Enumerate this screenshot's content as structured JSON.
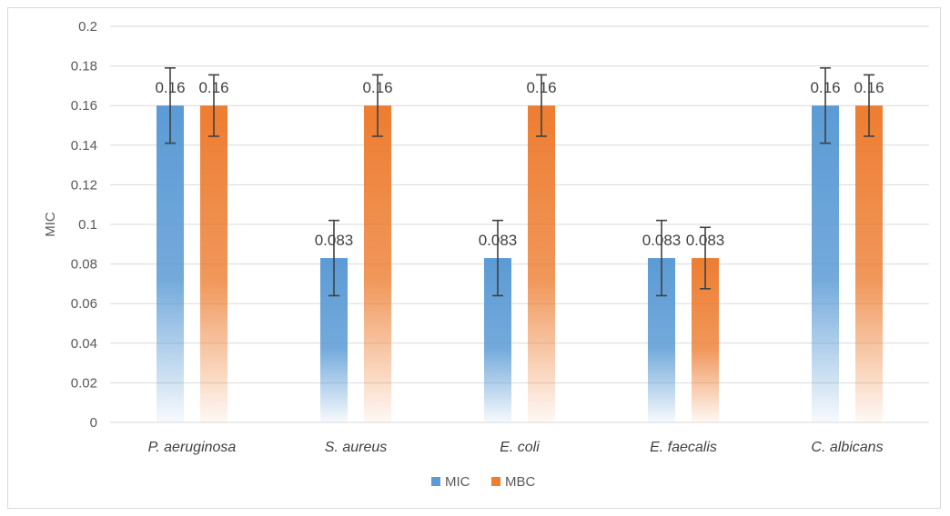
{
  "chart_data": {
    "type": "bar",
    "title": "",
    "xlabel": "",
    "ylabel": "MIC",
    "ylim": [
      0,
      0.2
    ],
    "yticks": [
      "0",
      "0.02",
      "0.04",
      "0.06",
      "0.08",
      "0.1",
      "0.12",
      "0.14",
      "0.16",
      "0.18",
      "0.2"
    ],
    "categories": [
      "P. aeruginosa",
      "S. aureus",
      "E. coli",
      "E. faecalis",
      "C. albicans"
    ],
    "series": [
      {
        "name": "MIC",
        "color": "#5b9bd5",
        "values": [
          0.16,
          0.083,
          0.083,
          0.083,
          0.16
        ],
        "labels": [
          "0.16",
          "0.083",
          "0.083",
          "0.083",
          "0.16"
        ],
        "error": [
          0.019,
          0.019,
          0.019,
          0.019,
          0.019
        ]
      },
      {
        "name": "MBC",
        "color": "#ed7d31",
        "values": [
          0.16,
          0.16,
          0.16,
          0.083,
          0.16
        ],
        "labels": [
          "0.16",
          "0.16",
          "0.16",
          "0.083",
          "0.16"
        ],
        "error": [
          0.0155,
          0.0155,
          0.0155,
          0.0155,
          0.0155
        ]
      }
    ],
    "grid": true,
    "legend": "bottom"
  }
}
